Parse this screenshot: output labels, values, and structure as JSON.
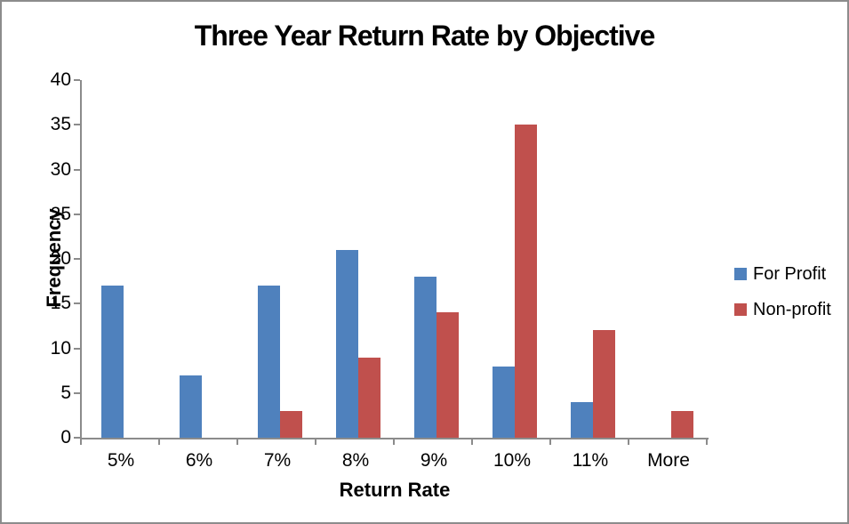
{
  "title": "Three Year Return Rate by Objective",
  "colors": {
    "for_profit": "#4F81BD",
    "non_profit": "#C0504D",
    "axis": "#8B8B8B",
    "frame_border": "#8C8C8C",
    "background": "#FFFFFF",
    "text": "#000000"
  },
  "legend": {
    "position": "right",
    "entries": [
      {
        "label": "For Profit",
        "color": "#4F81BD"
      },
      {
        "label": "Non-profit",
        "color": "#C0504D"
      }
    ]
  },
  "chart_data": {
    "type": "bar",
    "title": "Three Year Return Rate by Objective",
    "xlabel": "Return Rate",
    "ylabel": "Frequency",
    "categories": [
      "5%",
      "6%",
      "7%",
      "8%",
      "9%",
      "10%",
      "11%",
      "More"
    ],
    "series": [
      {
        "name": "For Profit",
        "color": "#4F81BD",
        "values": [
          17,
          7,
          17,
          21,
          18,
          8,
          4,
          0
        ]
      },
      {
        "name": "Non-profit",
        "color": "#C0504D",
        "values": [
          0,
          0,
          3,
          9,
          14,
          35,
          12,
          3
        ]
      }
    ],
    "ylim": [
      0,
      40
    ],
    "ytick_step": 5,
    "grid": false,
    "legend_position": "right"
  }
}
